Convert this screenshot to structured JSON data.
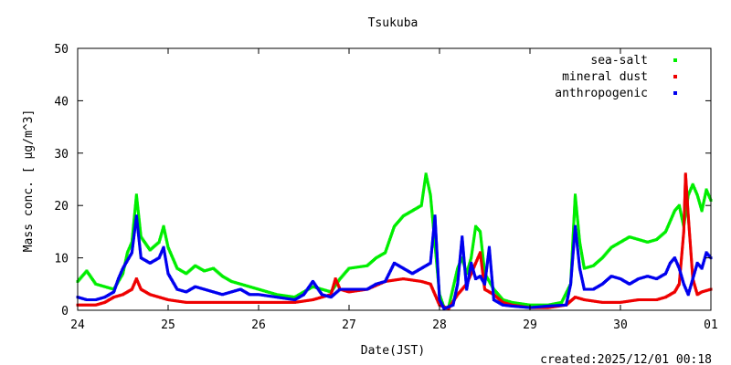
{
  "chart_data": {
    "type": "scatter",
    "title": "Tsukuba",
    "xlabel": "Date(JST)",
    "ylabel": "Mass conc. [ μg/m^3]",
    "x_tick_labels": [
      "24",
      "25",
      "26",
      "27",
      "28",
      "29",
      "30",
      "01"
    ],
    "y_tick_labels": [
      "0",
      "10",
      "20",
      "30",
      "40",
      "50"
    ],
    "xlim": [
      24,
      31
    ],
    "ylim": [
      0,
      50
    ],
    "grid": false,
    "legend_position": "top-right",
    "footer": "created:2025/12/01 00:18",
    "series": [
      {
        "name": "sea-salt",
        "color": "#00ee00",
        "points": [
          [
            24.0,
            5.5
          ],
          [
            24.1,
            7.5
          ],
          [
            24.2,
            5.0
          ],
          [
            24.3,
            4.5
          ],
          [
            24.4,
            4.0
          ],
          [
            24.5,
            7.0
          ],
          [
            24.55,
            11.0
          ],
          [
            24.6,
            13.0
          ],
          [
            24.65,
            22.0
          ],
          [
            24.7,
            14.0
          ],
          [
            24.8,
            11.5
          ],
          [
            24.9,
            13.0
          ],
          [
            24.95,
            16.0
          ],
          [
            25.0,
            12.0
          ],
          [
            25.1,
            8.0
          ],
          [
            25.2,
            7.0
          ],
          [
            25.3,
            8.5
          ],
          [
            25.4,
            7.5
          ],
          [
            25.5,
            8.0
          ],
          [
            25.6,
            6.5
          ],
          [
            25.7,
            5.5
          ],
          [
            25.8,
            5.0
          ],
          [
            25.9,
            4.5
          ],
          [
            26.0,
            4.0
          ],
          [
            26.2,
            3.0
          ],
          [
            26.4,
            2.5
          ],
          [
            26.6,
            4.5
          ],
          [
            26.8,
            3.5
          ],
          [
            26.9,
            6.0
          ],
          [
            27.0,
            8.0
          ],
          [
            27.2,
            8.5
          ],
          [
            27.3,
            10.0
          ],
          [
            27.4,
            11.0
          ],
          [
            27.5,
            16.0
          ],
          [
            27.6,
            18.0
          ],
          [
            27.7,
            19.0
          ],
          [
            27.8,
            20.0
          ],
          [
            27.85,
            26.0
          ],
          [
            27.9,
            22.0
          ],
          [
            28.0,
            3.0
          ],
          [
            28.05,
            0.5
          ],
          [
            28.1,
            0.5
          ],
          [
            28.2,
            8.0
          ],
          [
            28.25,
            10.0
          ],
          [
            28.3,
            7.0
          ],
          [
            28.35,
            10.0
          ],
          [
            28.4,
            16.0
          ],
          [
            28.45,
            15.0
          ],
          [
            28.5,
            7.0
          ],
          [
            28.6,
            4.0
          ],
          [
            28.7,
            2.0
          ],
          [
            28.8,
            1.5
          ],
          [
            29.0,
            1.0
          ],
          [
            29.2,
            1.0
          ],
          [
            29.35,
            1.5
          ],
          [
            29.45,
            5.0
          ],
          [
            29.5,
            22.0
          ],
          [
            29.55,
            13.0
          ],
          [
            29.6,
            8.0
          ],
          [
            29.7,
            8.5
          ],
          [
            29.8,
            10.0
          ],
          [
            29.9,
            12.0
          ],
          [
            30.0,
            13.0
          ],
          [
            30.1,
            14.0
          ],
          [
            30.2,
            13.5
          ],
          [
            30.3,
            13.0
          ],
          [
            30.4,
            13.5
          ],
          [
            30.5,
            15.0
          ],
          [
            30.6,
            19.0
          ],
          [
            30.65,
            20.0
          ],
          [
            30.7,
            16.0
          ],
          [
            30.75,
            22.0
          ],
          [
            30.8,
            24.0
          ],
          [
            30.85,
            22.0
          ],
          [
            30.9,
            19.0
          ],
          [
            30.95,
            23.0
          ],
          [
            31.0,
            21.0
          ]
        ]
      },
      {
        "name": "mineral dust",
        "color": "#ee0000",
        "points": [
          [
            24.0,
            1.0
          ],
          [
            24.2,
            1.0
          ],
          [
            24.3,
            1.5
          ],
          [
            24.4,
            2.5
          ],
          [
            24.5,
            3.0
          ],
          [
            24.6,
            4.0
          ],
          [
            24.65,
            6.0
          ],
          [
            24.7,
            4.0
          ],
          [
            24.8,
            3.0
          ],
          [
            24.9,
            2.5
          ],
          [
            25.0,
            2.0
          ],
          [
            25.2,
            1.5
          ],
          [
            25.4,
            1.5
          ],
          [
            25.6,
            1.5
          ],
          [
            25.8,
            1.5
          ],
          [
            26.0,
            1.5
          ],
          [
            26.2,
            1.5
          ],
          [
            26.4,
            1.5
          ],
          [
            26.6,
            2.0
          ],
          [
            26.8,
            3.0
          ],
          [
            26.85,
            6.0
          ],
          [
            26.9,
            4.0
          ],
          [
            27.0,
            3.5
          ],
          [
            27.2,
            4.0
          ],
          [
            27.4,
            5.5
          ],
          [
            27.6,
            6.0
          ],
          [
            27.8,
            5.5
          ],
          [
            27.9,
            5.0
          ],
          [
            28.0,
            1.0
          ],
          [
            28.1,
            0.3
          ],
          [
            28.2,
            3.0
          ],
          [
            28.3,
            5.0
          ],
          [
            28.4,
            9.0
          ],
          [
            28.45,
            11.0
          ],
          [
            28.5,
            4.0
          ],
          [
            28.6,
            3.0
          ],
          [
            28.7,
            1.5
          ],
          [
            28.8,
            1.0
          ],
          [
            29.0,
            0.5
          ],
          [
            29.2,
            0.5
          ],
          [
            29.4,
            1.0
          ],
          [
            29.5,
            2.5
          ],
          [
            29.6,
            2.0
          ],
          [
            29.8,
            1.5
          ],
          [
            30.0,
            1.5
          ],
          [
            30.2,
            2.0
          ],
          [
            30.4,
            2.0
          ],
          [
            30.5,
            2.5
          ],
          [
            30.6,
            3.5
          ],
          [
            30.65,
            5.0
          ],
          [
            30.7,
            15.0
          ],
          [
            30.72,
            26.0
          ],
          [
            30.75,
            18.0
          ],
          [
            30.8,
            6.0
          ],
          [
            30.85,
            3.0
          ],
          [
            30.9,
            3.5
          ],
          [
            31.0,
            4.0
          ]
        ]
      },
      {
        "name": "anthropogenic",
        "color": "#0000ee",
        "points": [
          [
            24.0,
            2.5
          ],
          [
            24.1,
            2.0
          ],
          [
            24.2,
            2.0
          ],
          [
            24.3,
            2.5
          ],
          [
            24.4,
            3.5
          ],
          [
            24.45,
            6.0
          ],
          [
            24.5,
            8.0
          ],
          [
            24.6,
            11.0
          ],
          [
            24.65,
            18.0
          ],
          [
            24.7,
            10.0
          ],
          [
            24.8,
            9.0
          ],
          [
            24.9,
            10.0
          ],
          [
            24.95,
            12.0
          ],
          [
            25.0,
            7.0
          ],
          [
            25.1,
            4.0
          ],
          [
            25.2,
            3.5
          ],
          [
            25.3,
            4.5
          ],
          [
            25.4,
            4.0
          ],
          [
            25.5,
            3.5
          ],
          [
            25.6,
            3.0
          ],
          [
            25.7,
            3.5
          ],
          [
            25.8,
            4.0
          ],
          [
            25.9,
            3.0
          ],
          [
            26.0,
            3.0
          ],
          [
            26.2,
            2.5
          ],
          [
            26.4,
            2.0
          ],
          [
            26.5,
            3.0
          ],
          [
            26.6,
            5.5
          ],
          [
            26.7,
            3.0
          ],
          [
            26.8,
            2.5
          ],
          [
            26.9,
            4.0
          ],
          [
            27.0,
            4.0
          ],
          [
            27.2,
            4.0
          ],
          [
            27.3,
            5.0
          ],
          [
            27.4,
            5.5
          ],
          [
            27.5,
            9.0
          ],
          [
            27.6,
            8.0
          ],
          [
            27.7,
            7.0
          ],
          [
            27.8,
            8.0
          ],
          [
            27.9,
            9.0
          ],
          [
            27.95,
            18.0
          ],
          [
            28.0,
            2.0
          ],
          [
            28.05,
            0.3
          ],
          [
            28.15,
            1.0
          ],
          [
            28.2,
            5.0
          ],
          [
            28.25,
            14.0
          ],
          [
            28.3,
            4.0
          ],
          [
            28.35,
            9.0
          ],
          [
            28.4,
            6.0
          ],
          [
            28.45,
            6.5
          ],
          [
            28.5,
            5.0
          ],
          [
            28.55,
            12.0
          ],
          [
            28.6,
            2.0
          ],
          [
            28.7,
            1.0
          ],
          [
            28.8,
            0.8
          ],
          [
            29.0,
            0.5
          ],
          [
            29.2,
            0.8
          ],
          [
            29.4,
            1.0
          ],
          [
            29.45,
            5.0
          ],
          [
            29.5,
            16.0
          ],
          [
            29.55,
            8.0
          ],
          [
            29.6,
            4.0
          ],
          [
            29.7,
            4.0
          ],
          [
            29.8,
            5.0
          ],
          [
            29.9,
            6.5
          ],
          [
            30.0,
            6.0
          ],
          [
            30.1,
            5.0
          ],
          [
            30.2,
            6.0
          ],
          [
            30.3,
            6.5
          ],
          [
            30.4,
            6.0
          ],
          [
            30.5,
            7.0
          ],
          [
            30.55,
            9.0
          ],
          [
            30.6,
            10.0
          ],
          [
            30.65,
            8.0
          ],
          [
            30.7,
            5.0
          ],
          [
            30.75,
            3.0
          ],
          [
            30.8,
            6.0
          ],
          [
            30.85,
            9.0
          ],
          [
            30.9,
            8.0
          ],
          [
            30.95,
            11.0
          ],
          [
            31.0,
            10.0
          ]
        ]
      }
    ]
  }
}
